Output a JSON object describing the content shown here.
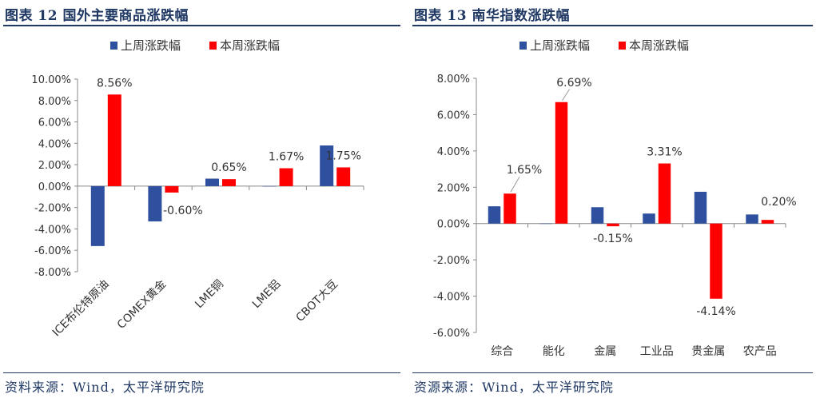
{
  "figures": [
    {
      "title": "图表 12 国外主要商品涨跌幅",
      "source": "资料来源：Wind，太平洋研究院",
      "chart_data": {
        "type": "bar",
        "categories": [
          "ICE布伦特原油",
          "COMEX黄金",
          "LME铜",
          "LME铝",
          "CBOT大豆"
        ],
        "series": [
          {
            "name": "上周涨跌幅",
            "color": "#2f4f9f",
            "values": [
              -5.6,
              -3.3,
              0.7,
              0.0,
              3.8
            ]
          },
          {
            "name": "本周涨跌幅",
            "color": "#ff0000",
            "values": [
              8.56,
              -0.6,
              0.65,
              1.67,
              1.75
            ]
          }
        ],
        "data_labels": [
          "8.56%",
          "-0.60%",
          "0.65%",
          "1.67%",
          "1.75%"
        ],
        "y_ticks": [
          "10.00%",
          "8.00%",
          "6.00%",
          "4.00%",
          "2.00%",
          "0.00%",
          "-2.00%",
          "-4.00%",
          "-6.00%",
          "-8.00%"
        ],
        "ylim": [
          -8,
          10
        ],
        "legend_position": "top",
        "x_label_rotation": "rotated",
        "grid": false
      }
    },
    {
      "title": "图表 13 南华指数涨跌幅",
      "source": "资源来源：Wind，太平洋研究院",
      "chart_data": {
        "type": "bar",
        "categories": [
          "综合",
          "能化",
          "金属",
          "工业品",
          "贵金属",
          "农产品"
        ],
        "series": [
          {
            "name": "上周涨跌幅",
            "color": "#2f4f9f",
            "values": [
              0.95,
              0.0,
              0.9,
              0.55,
              1.75,
              0.5
            ]
          },
          {
            "name": "本周涨跌幅",
            "color": "#ff0000",
            "values": [
              1.65,
              6.69,
              -0.15,
              3.31,
              -4.14,
              0.2
            ]
          }
        ],
        "data_labels": [
          "1.65%",
          "6.69%",
          "-0.15%",
          "3.31%",
          "-4.14%",
          "0.20%"
        ],
        "y_ticks": [
          "8.00%",
          "6.00%",
          "4.00%",
          "2.00%",
          "0.00%",
          "-2.00%",
          "-4.00%",
          "-6.00%"
        ],
        "ylim": [
          -6,
          8
        ],
        "legend_position": "top",
        "x_label_rotation": "horizontal",
        "grid": false
      }
    }
  ]
}
